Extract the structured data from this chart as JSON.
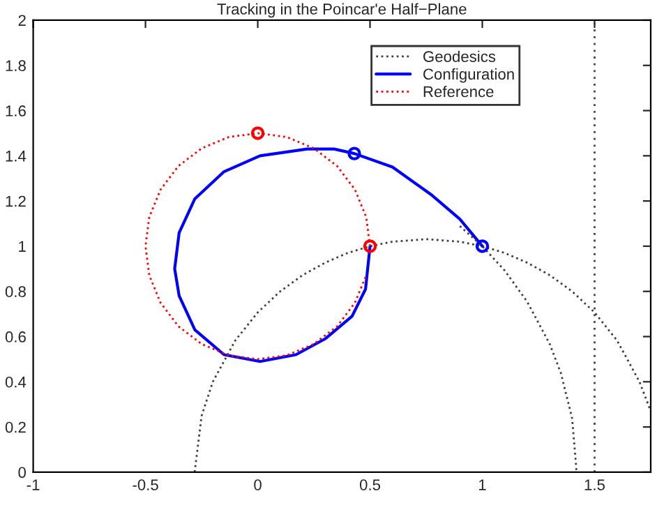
{
  "chart_data": {
    "type": "line",
    "title": "Tracking in the Poincar'e Half−Plane",
    "xlim": [
      -1,
      1.75
    ],
    "xticks": [
      -1,
      -0.5,
      0,
      0.5,
      1,
      1.5
    ],
    "ylim": [
      0,
      2
    ],
    "yticks": [
      0,
      0.2,
      0.4,
      0.6,
      0.8,
      1,
      1.2,
      1.4,
      1.6,
      1.8,
      2
    ],
    "grid": false,
    "legend": "top right",
    "ref_lines": [
      {
        "axis": "x",
        "value": 1.5,
        "color": "#404040",
        "line_style": "dotted"
      }
    ],
    "series": [
      {
        "name": "Geodesics",
        "type": "line",
        "line_style": "dotted",
        "color": "#404040",
        "x": [
          -0.281,
          -0.25,
          -0.2,
          -0.1,
          0,
          0.1,
          0.2,
          0.3,
          0.4,
          0.5,
          0.6,
          0.75,
          0.9,
          1.0,
          1.1,
          1.2,
          1.3,
          1.4,
          1.5,
          1.6,
          1.7,
          1.75
        ],
        "values": [
          0,
          0.25,
          0.4,
          0.583,
          0.707,
          0.8,
          0.872,
          0.927,
          0.97,
          1.0,
          1.02,
          1.031,
          1.02,
          1.0,
          0.97,
          0.927,
          0.872,
          0.8,
          0.707,
          0.583,
          0.4,
          0.27
        ]
      },
      {
        "name": "Configuration",
        "type": "line",
        "line_style": "solid",
        "color": "#0000ff",
        "x": [
          0.5,
          0.48,
          0.42,
          0.3,
          0.17,
          0.01,
          -0.15,
          -0.28,
          -0.35,
          -0.37,
          -0.35,
          -0.28,
          -0.15,
          0.01,
          0.22,
          0.34,
          0.43,
          0.6,
          0.77,
          0.9,
          1.0
        ],
        "values": [
          1.0,
          0.81,
          0.69,
          0.59,
          0.52,
          0.49,
          0.52,
          0.63,
          0.78,
          0.9,
          1.06,
          1.21,
          1.33,
          1.4,
          1.43,
          1.43,
          1.41,
          1.35,
          1.23,
          1.12,
          1.0
        ]
      },
      {
        "name": "Reference",
        "line_style": "dotted",
        "color": "#ff0000",
        "x": [
          0.5,
          0.483,
          0.433,
          0.354,
          0.25,
          0.129,
          0,
          -0.129,
          -0.25,
          -0.354,
          -0.433,
          -0.483,
          -0.5,
          -0.483,
          -0.433,
          -0.354,
          -0.25,
          -0.129,
          0,
          0.129,
          0.25,
          0.354,
          0.433,
          0.483
        ],
        "values": [
          1,
          1.129,
          1.25,
          1.354,
          1.433,
          1.483,
          1.5,
          1.483,
          1.433,
          1.354,
          1.25,
          1.129,
          1,
          0.871,
          0.75,
          0.646,
          0.567,
          0.517,
          0.5,
          0.517,
          0.567,
          0.646,
          0.75,
          0.871
        ]
      },
      {
        "line_style": "dotted",
        "color": "#404040",
        "x": [
          0.9,
          1.0,
          1.1,
          1.2,
          1.3,
          1.35,
          1.4,
          1.42
        ],
        "values": [
          1.089,
          1.0,
          0.892,
          0.754,
          0.568,
          0.438,
          0.239,
          0
        ]
      },
      {
        "type": "scatter",
        "marker": "circle",
        "color": "#ff0000",
        "x": [
          0,
          0.5
        ],
        "values": [
          1.5,
          1
        ]
      },
      {
        "type": "scatter",
        "marker": "circle",
        "color": "#0000ff",
        "x": [
          0.43,
          1.0
        ],
        "values": [
          1.41,
          1
        ]
      }
    ]
  }
}
